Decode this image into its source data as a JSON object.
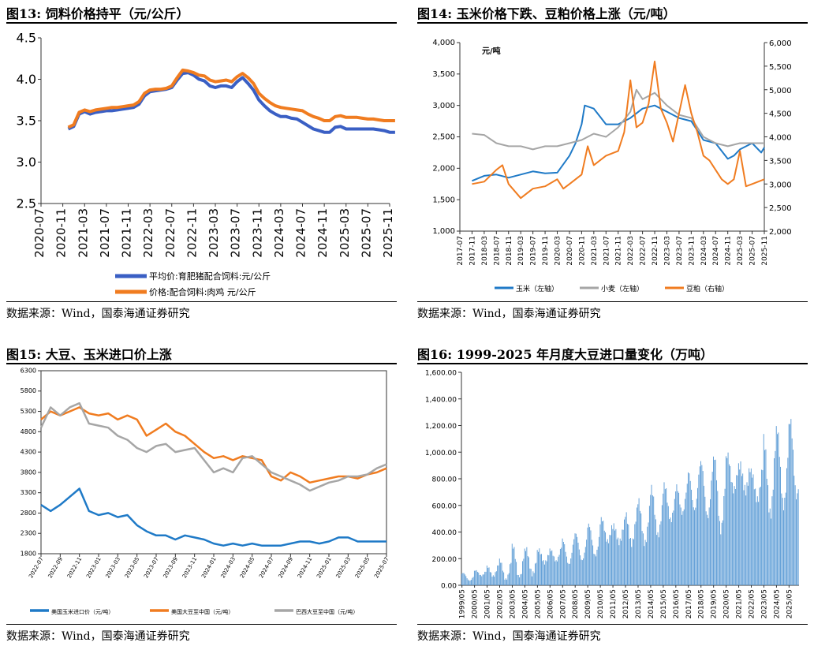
{
  "colors": {
    "blue": "#3a5fc4",
    "orange": "#f07c20",
    "gray": "#a6a6a6",
    "bar": "#5b9bd5",
    "corn": "#1f7ac7"
  },
  "source_text": "数据来源：Wind，国泰海通证券研究",
  "chart_data": [
    {
      "id": "fig13",
      "type": "line",
      "title": "图13:  饲料价格持平（元/公斤）",
      "ylim": [
        2.5,
        4.5
      ],
      "yticks": [
        "2.5",
        "3.0",
        "3.5",
        "4.0",
        "4.5"
      ],
      "x_range": [
        "2020-07",
        "2025-11"
      ],
      "xticks": [
        "2020-07",
        "2020-11",
        "2021-03",
        "2021-07",
        "2021-11",
        "2022-03",
        "2022-07",
        "2022-11",
        "2023-03",
        "2023-07",
        "2023-11",
        "2024-03",
        "2024-07",
        "2024-11",
        "2025-03",
        "2025-07",
        "2025-11"
      ],
      "legend_position": "bottom",
      "series": [
        {
          "name": "平均价:育肥猪配合饲料:元/公斤",
          "color": "blue",
          "x": [
            "2020-12",
            "2021-01",
            "2021-02",
            "2021-03",
            "2021-04",
            "2021-05",
            "2021-06",
            "2021-07",
            "2021-08",
            "2021-09",
            "2021-10",
            "2021-11",
            "2021-12",
            "2022-01",
            "2022-02",
            "2022-03",
            "2022-04",
            "2022-05",
            "2022-06",
            "2022-07",
            "2022-08",
            "2022-09",
            "2022-10",
            "2022-11",
            "2022-12",
            "2023-01",
            "2023-02",
            "2023-03",
            "2023-04",
            "2023-05",
            "2023-06",
            "2023-07",
            "2023-08",
            "2023-09",
            "2023-10",
            "2023-11",
            "2023-12",
            "2024-01",
            "2024-02",
            "2024-03",
            "2024-04",
            "2024-05",
            "2024-06",
            "2024-07",
            "2024-08",
            "2024-09",
            "2024-10",
            "2024-11",
            "2024-12",
            "2025-01",
            "2025-02",
            "2025-03",
            "2025-04",
            "2025-05",
            "2025-06",
            "2025-07",
            "2025-08",
            "2025-09",
            "2025-10",
            "2025-11",
            "2025-12"
          ],
          "y": [
            3.4,
            3.43,
            3.58,
            3.61,
            3.58,
            3.6,
            3.61,
            3.62,
            3.62,
            3.63,
            3.64,
            3.65,
            3.66,
            3.7,
            3.8,
            3.85,
            3.86,
            3.87,
            3.88,
            3.9,
            3.99,
            4.07,
            4.08,
            4.05,
            4.0,
            3.98,
            3.92,
            3.9,
            3.92,
            3.92,
            3.9,
            3.97,
            4.02,
            3.95,
            3.87,
            3.75,
            3.68,
            3.62,
            3.58,
            3.55,
            3.55,
            3.53,
            3.52,
            3.48,
            3.44,
            3.4,
            3.38,
            3.36,
            3.36,
            3.42,
            3.43,
            3.4,
            3.4,
            3.4,
            3.4,
            3.4,
            3.4,
            3.39,
            3.38,
            3.36,
            3.36
          ]
        },
        {
          "name": "价格:配合饲料:肉鸡 元/公斤",
          "color": "orange",
          "x": [
            "2020-12",
            "2021-01",
            "2021-02",
            "2021-03",
            "2021-04",
            "2021-05",
            "2021-06",
            "2021-07",
            "2021-08",
            "2021-09",
            "2021-10",
            "2021-11",
            "2021-12",
            "2022-01",
            "2022-02",
            "2022-03",
            "2022-04",
            "2022-05",
            "2022-06",
            "2022-07",
            "2022-08",
            "2022-09",
            "2022-10",
            "2022-11",
            "2022-12",
            "2023-01",
            "2023-02",
            "2023-03",
            "2023-04",
            "2023-05",
            "2023-06",
            "2023-07",
            "2023-08",
            "2023-09",
            "2023-10",
            "2023-11",
            "2023-12",
            "2024-01",
            "2024-02",
            "2024-03",
            "2024-04",
            "2024-05",
            "2024-06",
            "2024-07",
            "2024-08",
            "2024-09",
            "2024-10",
            "2024-11",
            "2024-12",
            "2025-01",
            "2025-02",
            "2025-03",
            "2025-04",
            "2025-05",
            "2025-06",
            "2025-07",
            "2025-08",
            "2025-09",
            "2025-10",
            "2025-11",
            "2025-12"
          ],
          "y": [
            3.42,
            3.45,
            3.6,
            3.63,
            3.61,
            3.63,
            3.64,
            3.65,
            3.66,
            3.66,
            3.67,
            3.68,
            3.69,
            3.73,
            3.83,
            3.87,
            3.88,
            3.88,
            3.89,
            3.92,
            4.02,
            4.11,
            4.1,
            4.08,
            4.05,
            4.04,
            3.99,
            3.97,
            3.98,
            3.99,
            3.97,
            4.03,
            4.07,
            4.02,
            3.95,
            3.83,
            3.77,
            3.72,
            3.68,
            3.66,
            3.65,
            3.64,
            3.63,
            3.62,
            3.58,
            3.55,
            3.53,
            3.5,
            3.5,
            3.55,
            3.56,
            3.54,
            3.54,
            3.54,
            3.53,
            3.52,
            3.52,
            3.51,
            3.5,
            3.5,
            3.5
          ]
        }
      ]
    },
    {
      "id": "fig14",
      "type": "line",
      "title": "图14:  玉米价格下跌、豆粕价格上涨（元/吨）",
      "unit_label": "元/吨",
      "ylim_left": [
        1000,
        4000
      ],
      "ylim_right": [
        2000,
        6000
      ],
      "yticks_left": [
        "1,000",
        "1,500",
        "2,000",
        "2,500",
        "3,000",
        "3,500",
        "4,000"
      ],
      "yticks_right": [
        "2,000",
        "2,500",
        "3,000",
        "3,500",
        "4,000",
        "4,500",
        "5,000",
        "5,500",
        "6,000"
      ],
      "x_range": [
        "2017-07",
        "2025-11"
      ],
      "xticks": [
        "2017-07",
        "2017-11",
        "2018-03",
        "2018-07",
        "2018-11",
        "2019-03",
        "2019-07",
        "2019-11",
        "2020-03",
        "2020-07",
        "2020-11",
        "2021-03",
        "2021-07",
        "2021-11",
        "2022-03",
        "2022-07",
        "2022-11",
        "2023-03",
        "2023-07",
        "2023-11",
        "2024-03",
        "2024-07",
        "2024-11",
        "2025-03",
        "2025-07",
        "2025-11"
      ],
      "legend_position": "bottom",
      "series": [
        {
          "name": "玉米（左轴）",
          "color": "corn",
          "axis": "left",
          "x": [
            "2017-11",
            "2018-03",
            "2018-07",
            "2018-11",
            "2019-03",
            "2019-07",
            "2019-11",
            "2020-03",
            "2020-07",
            "2020-09",
            "2020-11",
            "2020-12",
            "2021-03",
            "2021-07",
            "2021-11",
            "2022-03",
            "2022-07",
            "2022-11",
            "2023-01",
            "2023-03",
            "2023-07",
            "2023-11",
            "2024-01",
            "2024-03",
            "2024-07",
            "2024-11",
            "2025-01",
            "2025-03",
            "2025-07",
            "2025-10",
            "2025-11"
          ],
          "y": [
            1800,
            1880,
            1900,
            1850,
            1900,
            1950,
            1920,
            1930,
            2200,
            2400,
            2700,
            3000,
            2950,
            2700,
            2700,
            2800,
            2950,
            3000,
            2950,
            2900,
            2800,
            2750,
            2600,
            2450,
            2400,
            2150,
            2200,
            2300,
            2400,
            2250,
            2330
          ]
        },
        {
          "name": "小麦（左轴）",
          "color": "gray",
          "axis": "left",
          "x": [
            "2017-11",
            "2018-03",
            "2018-07",
            "2018-11",
            "2019-03",
            "2019-07",
            "2019-11",
            "2020-03",
            "2020-07",
            "2020-11",
            "2021-03",
            "2021-07",
            "2021-11",
            "2022-03",
            "2022-05",
            "2022-07",
            "2022-11",
            "2023-03",
            "2023-07",
            "2023-11",
            "2024-03",
            "2024-07",
            "2024-11",
            "2025-03",
            "2025-07",
            "2025-11"
          ],
          "y": [
            2550,
            2530,
            2400,
            2350,
            2350,
            2300,
            2350,
            2350,
            2400,
            2450,
            2550,
            2500,
            2650,
            2900,
            3250,
            3100,
            3200,
            3000,
            2850,
            2800,
            2500,
            2400,
            2350,
            2400,
            2400,
            2400
          ]
        },
        {
          "name": "豆粕（右轴）",
          "color": "orange",
          "axis": "right",
          "x": [
            "2017-11",
            "2018-03",
            "2018-07",
            "2018-09",
            "2018-11",
            "2019-03",
            "2019-07",
            "2019-11",
            "2020-03",
            "2020-05",
            "2020-07",
            "2020-11",
            "2021-01",
            "2021-03",
            "2021-07",
            "2021-11",
            "2022-01",
            "2022-03",
            "2022-05",
            "2022-07",
            "2022-09",
            "2022-11",
            "2023-01",
            "2023-03",
            "2023-05",
            "2023-07",
            "2023-09",
            "2023-11",
            "2024-01",
            "2024-03",
            "2024-05",
            "2024-07",
            "2024-09",
            "2024-11",
            "2025-01",
            "2025-03",
            "2025-05",
            "2025-07",
            "2025-09",
            "2025-11"
          ],
          "y": [
            3000,
            3050,
            3300,
            3400,
            3000,
            2700,
            2900,
            2950,
            3100,
            2900,
            3000,
            3200,
            3800,
            3400,
            3600,
            3700,
            4100,
            5200,
            4200,
            4300,
            4700,
            5600,
            4600,
            4300,
            3900,
            4500,
            5100,
            4500,
            4100,
            3600,
            3500,
            3300,
            3100,
            3000,
            3100,
            3700,
            2950,
            3000,
            3050,
            3100
          ]
        }
      ]
    },
    {
      "id": "fig15",
      "type": "line",
      "title": "图15:  大豆、玉米进口价上涨",
      "ylim": [
        1800,
        6300
      ],
      "yticks": [
        "1800",
        "2300",
        "2800",
        "3300",
        "3800",
        "4300",
        "4800",
        "5300",
        "5800",
        "6300"
      ],
      "x_range": [
        "2022-07",
        "2025-07"
      ],
      "xticks": [
        "2022-07",
        "2022-09",
        "2022-11",
        "2023-01",
        "2023-03",
        "2023-05",
        "2023-07",
        "2023-09",
        "2023-11",
        "2024-01",
        "2024-03",
        "2024-05",
        "2024-07",
        "2024-09",
        "2024-11",
        "2025-01",
        "2025-03",
        "2025-05",
        "2025-07"
      ],
      "legend_position": "bottom",
      "series": [
        {
          "name": "美国玉米进口价（元/吨）",
          "color": "corn",
          "x": [
            "2022-07",
            "2022-08",
            "2022-09",
            "2022-10",
            "2022-11",
            "2022-12",
            "2023-01",
            "2023-02",
            "2023-03",
            "2023-04",
            "2023-05",
            "2023-06",
            "2023-07",
            "2023-08",
            "2023-09",
            "2023-10",
            "2023-11",
            "2023-12",
            "2024-01",
            "2024-02",
            "2024-03",
            "2024-04",
            "2024-05",
            "2024-06",
            "2024-07",
            "2024-08",
            "2024-09",
            "2024-10",
            "2024-11",
            "2024-12",
            "2025-01",
            "2025-02",
            "2025-03",
            "2025-04",
            "2025-05",
            "2025-06",
            "2025-07"
          ],
          "y": [
            3000,
            2850,
            3000,
            3200,
            3400,
            2850,
            2750,
            2800,
            2700,
            2750,
            2500,
            2350,
            2250,
            2250,
            2150,
            2250,
            2200,
            2150,
            2050,
            2000,
            2050,
            2000,
            2050,
            2000,
            2000,
            2000,
            2050,
            2100,
            2100,
            2050,
            2100,
            2200,
            2200,
            2100,
            2100,
            2100,
            2100
          ]
        },
        {
          "name": "美国大豆至中国（元/吨）",
          "color": "orange",
          "x": [
            "2022-07",
            "2022-08",
            "2022-09",
            "2022-10",
            "2022-11",
            "2022-12",
            "2023-01",
            "2023-02",
            "2023-03",
            "2023-04",
            "2023-05",
            "2023-06",
            "2023-07",
            "2023-08",
            "2023-09",
            "2023-10",
            "2023-11",
            "2023-12",
            "2024-01",
            "2024-02",
            "2024-03",
            "2024-04",
            "2024-05",
            "2024-06",
            "2024-07",
            "2024-08",
            "2024-09",
            "2024-10",
            "2024-11",
            "2024-12",
            "2025-01",
            "2025-02",
            "2025-03",
            "2025-04",
            "2025-05",
            "2025-06",
            "2025-07"
          ],
          "y": [
            5100,
            5300,
            5200,
            5300,
            5400,
            5250,
            5200,
            5250,
            5100,
            5200,
            5100,
            4700,
            4850,
            5000,
            4800,
            4700,
            4500,
            4300,
            4150,
            4200,
            4100,
            4200,
            4150,
            4100,
            3700,
            3600,
            3800,
            3700,
            3550,
            3600,
            3650,
            3700,
            3700,
            3650,
            3750,
            3800,
            3900
          ]
        },
        {
          "name": "巴西大豆至中国（元/吨）",
          "color": "gray",
          "x": [
            "2022-07",
            "2022-08",
            "2022-09",
            "2022-10",
            "2022-11",
            "2022-12",
            "2023-01",
            "2023-02",
            "2023-03",
            "2023-04",
            "2023-05",
            "2023-06",
            "2023-07",
            "2023-08",
            "2023-09",
            "2023-10",
            "2023-11",
            "2023-12",
            "2024-01",
            "2024-02",
            "2024-03",
            "2024-04",
            "2024-05",
            "2024-06",
            "2024-07",
            "2024-08",
            "2024-09",
            "2024-10",
            "2024-11",
            "2025-01",
            "2025-02",
            "2025-03",
            "2025-04",
            "2025-05",
            "2025-06",
            "2025-07"
          ],
          "y": [
            4900,
            5400,
            5200,
            5400,
            5500,
            5000,
            4950,
            4900,
            4700,
            4600,
            4400,
            4300,
            4450,
            4500,
            4300,
            4350,
            4400,
            4100,
            3800,
            3900,
            3800,
            4150,
            4200,
            4000,
            3800,
            3700,
            3600,
            3500,
            3350,
            3550,
            3600,
            3700,
            3700,
            3750,
            3900,
            4000
          ]
        }
      ]
    },
    {
      "id": "fig16",
      "type": "bar",
      "title": "图16:  1999-2025 年月度大豆进口量变化（万吨）",
      "ylim": [
        0,
        1600
      ],
      "yticks": [
        "0.00",
        "200.00",
        "400.00",
        "600.00",
        "800.00",
        "1,000.00",
        "1,200.00",
        "1,400.00",
        "1,600.00"
      ],
      "x_start": "1999-05",
      "xticks": [
        "1999/05",
        "2000/05",
        "2001/05",
        "2002/05",
        "2003/05",
        "2004/05",
        "2005/05",
        "2006/05",
        "2007/05",
        "2008/05",
        "2009/05",
        "2010/05",
        "2011/05",
        "2012/05",
        "2013/05",
        "2014/05",
        "2015/05",
        "2016/05",
        "2017/05",
        "2018/05",
        "2019/05",
        "2020/05",
        "2021/05",
        "2022/05",
        "2023/05",
        "2024/05",
        "2025/05"
      ],
      "yearly_mean": [
        60,
        90,
        110,
        120,
        170,
        170,
        210,
        230,
        260,
        290,
        330,
        400,
        390,
        440,
        480,
        540,
        600,
        640,
        730,
        730,
        680,
        830,
        800,
        760,
        830,
        880,
        920
      ],
      "yearly_peak": [
        110,
        150,
        200,
        230,
        330,
        320,
        340,
        350,
        410,
        420,
        500,
        600,
        580,
        640,
        690,
        780,
        870,
        960,
        1020,
        1010,
        1040,
        1070,
        1100,
        1000,
        1230,
        1250,
        1390
      ]
    }
  ]
}
